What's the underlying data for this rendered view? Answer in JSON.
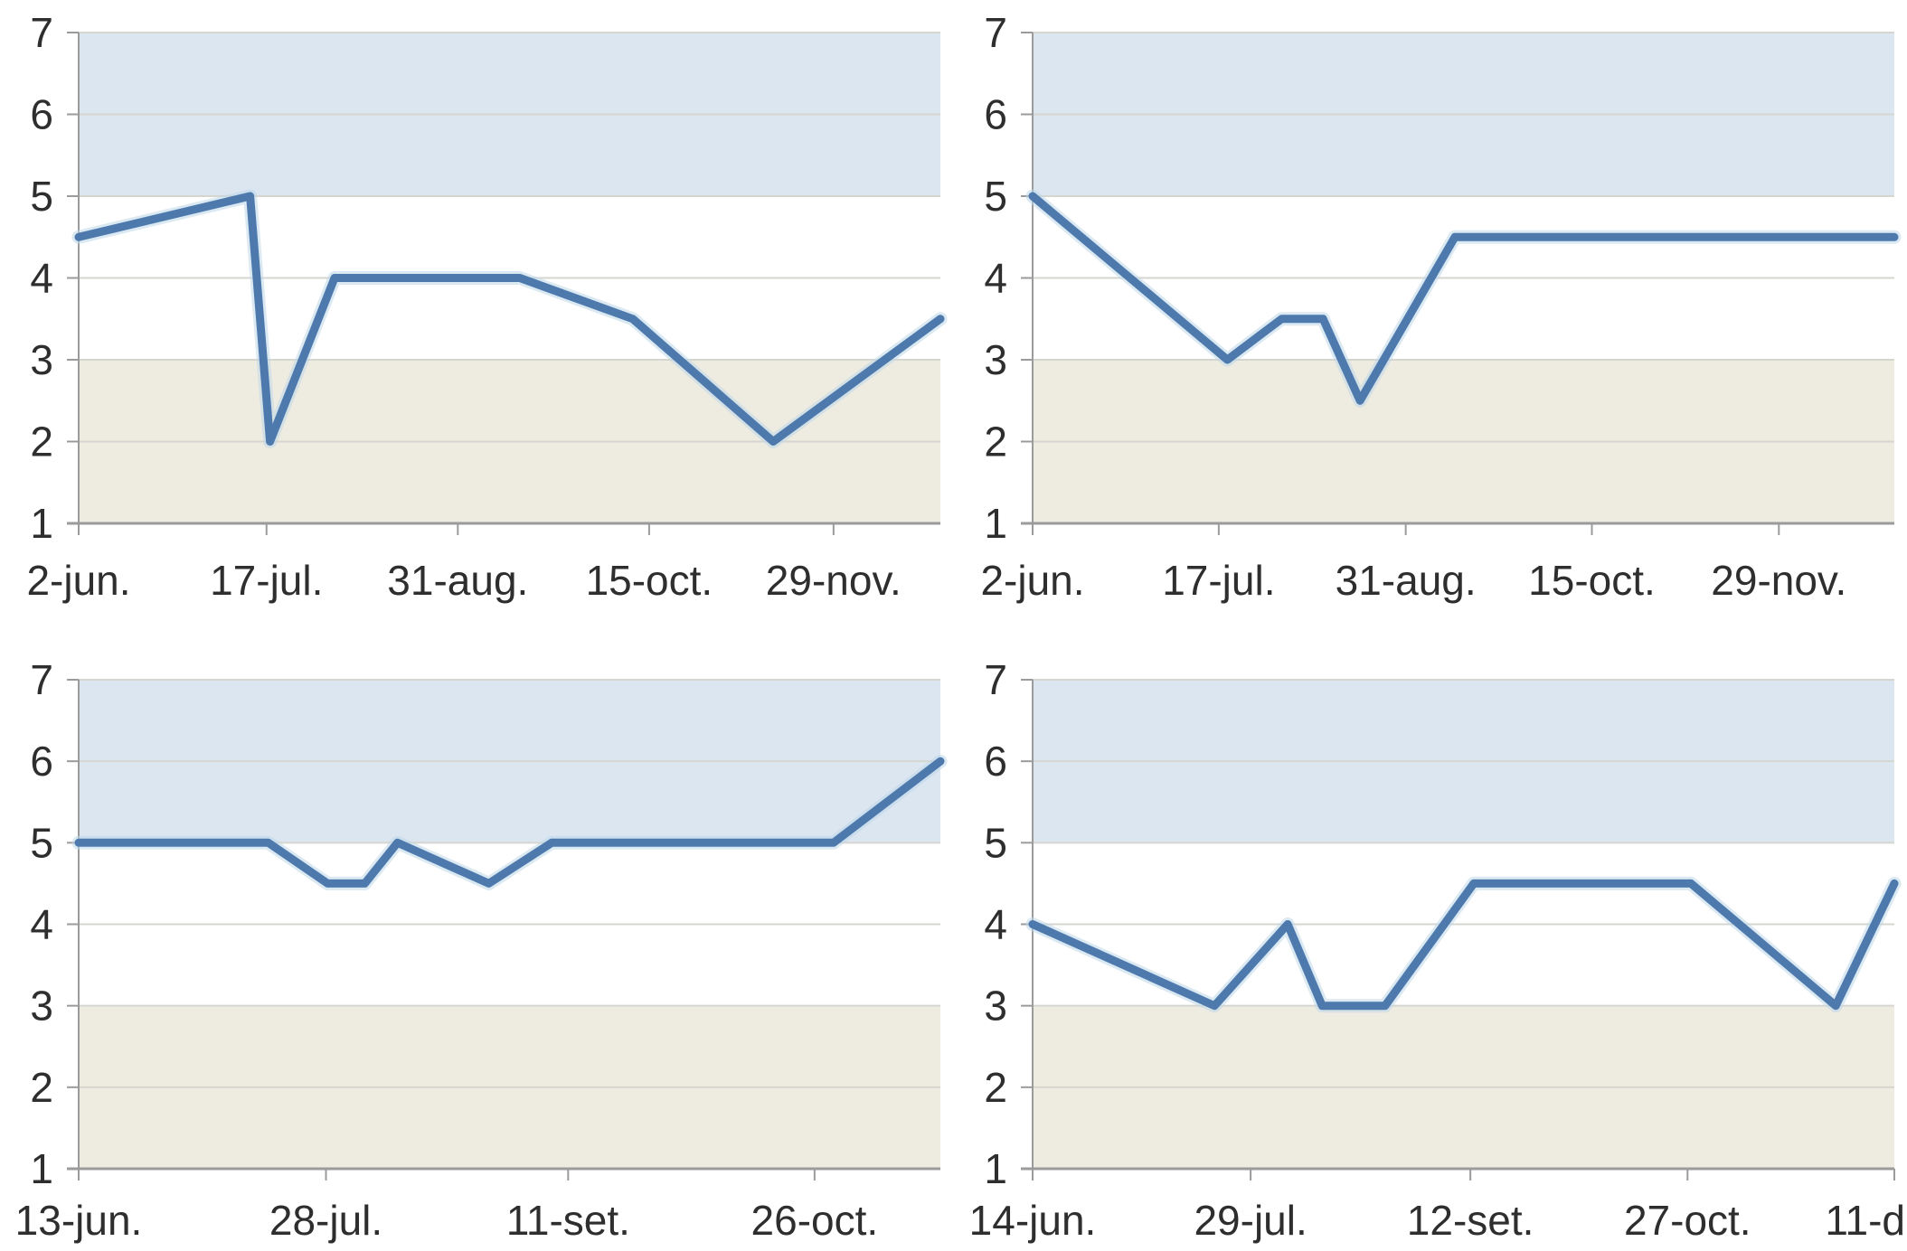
{
  "page": {
    "background": "#ffffff",
    "description": "Four Excel-style line charts in a 2x2 grid, each with y-scale 1-7, a light blue band from 5 to 7, a beige band from 1 to 3, and a single steel-blue data line over date x-axis"
  },
  "styles": {
    "band_high_color": "#dce6f1",
    "band_low_color": "#eeebe1",
    "line_color": "#4e79ad",
    "line_halo_color": "#bdd7ea",
    "gridline_color": "#d6d6d0",
    "axis_color": "#9b9b9b",
    "label_color": "#2e2e2e"
  },
  "chart_data": [
    {
      "type": "line",
      "panel": "top-left",
      "title": "",
      "ylim": [
        1,
        7
      ],
      "yticks": [
        1,
        2,
        3,
        4,
        5,
        6,
        7
      ],
      "grid": true,
      "legend": "none",
      "bands": [
        {
          "name": "high",
          "from": 5,
          "to": 7
        },
        {
          "name": "low",
          "from": 1,
          "to": 3
        }
      ],
      "xticks": [
        {
          "label": "2-jun.",
          "pos": 0.0
        },
        {
          "label": "17-jul.",
          "pos": 0.218
        },
        {
          "label": "31-aug.",
          "pos": 0.44
        },
        {
          "label": "15-oct.",
          "pos": 0.662
        },
        {
          "label": "29-nov.",
          "pos": 0.876
        }
      ],
      "points": [
        {
          "x": 0.0,
          "y": 4.5
        },
        {
          "x": 0.199,
          "y": 5
        },
        {
          "x": 0.222,
          "y": 2
        },
        {
          "x": 0.297,
          "y": 4
        },
        {
          "x": 0.512,
          "y": 4
        },
        {
          "x": 0.643,
          "y": 3.5
        },
        {
          "x": 0.806,
          "y": 2
        },
        {
          "x": 1.0,
          "y": 3.5
        }
      ]
    },
    {
      "type": "line",
      "panel": "top-right",
      "title": "",
      "ylim": [
        1,
        7
      ],
      "yticks": [
        1,
        2,
        3,
        4,
        5,
        6,
        7
      ],
      "grid": true,
      "legend": "none",
      "bands": [
        {
          "name": "high",
          "from": 5,
          "to": 7
        },
        {
          "name": "low",
          "from": 1,
          "to": 3
        }
      ],
      "xticks": [
        {
          "label": "2-jun.",
          "pos": 0.0
        },
        {
          "label": "17-jul.",
          "pos": 0.216
        },
        {
          "label": "31-aug.",
          "pos": 0.433
        },
        {
          "label": "15-oct.",
          "pos": 0.649
        },
        {
          "label": "29-nov.",
          "pos": 0.866
        }
      ],
      "points": [
        {
          "x": 0.0,
          "y": 5
        },
        {
          "x": 0.226,
          "y": 3
        },
        {
          "x": 0.289,
          "y": 3.5
        },
        {
          "x": 0.337,
          "y": 3.5
        },
        {
          "x": 0.38,
          "y": 2.5
        },
        {
          "x": 0.49,
          "y": 4.5
        },
        {
          "x": 1.0,
          "y": 4.5
        }
      ]
    },
    {
      "type": "line",
      "panel": "bottom-left",
      "title": "",
      "ylim": [
        1,
        7
      ],
      "yticks": [
        1,
        2,
        3,
        4,
        5,
        6,
        7
      ],
      "grid": true,
      "legend": "none",
      "bands": [
        {
          "name": "high",
          "from": 5,
          "to": 7
        },
        {
          "name": "low",
          "from": 1,
          "to": 3
        }
      ],
      "xticks": [
        {
          "label": "13-jun.",
          "pos": 0.0
        },
        {
          "label": "28-jul.",
          "pos": 0.287
        },
        {
          "label": "11-set.",
          "pos": 0.568
        },
        {
          "label": "26-oct.",
          "pos": 0.854
        }
      ],
      "points": [
        {
          "x": 0.0,
          "y": 5
        },
        {
          "x": 0.22,
          "y": 5
        },
        {
          "x": 0.289,
          "y": 4.5
        },
        {
          "x": 0.332,
          "y": 4.5
        },
        {
          "x": 0.37,
          "y": 5
        },
        {
          "x": 0.476,
          "y": 4.5
        },
        {
          "x": 0.549,
          "y": 5
        },
        {
          "x": 0.876,
          "y": 5
        },
        {
          "x": 1.0,
          "y": 6
        }
      ]
    },
    {
      "type": "line",
      "panel": "bottom-right",
      "title": "",
      "ylim": [
        1,
        7
      ],
      "yticks": [
        1,
        2,
        3,
        4,
        5,
        6,
        7
      ],
      "grid": true,
      "legend": "none",
      "bands": [
        {
          "name": "high",
          "from": 5,
          "to": 7
        },
        {
          "name": "low",
          "from": 1,
          "to": 3
        }
      ],
      "xticks": [
        {
          "label": "14-jun.",
          "pos": 0.0
        },
        {
          "label": "29-jul.",
          "pos": 0.253
        },
        {
          "label": "12-set.",
          "pos": 0.508
        },
        {
          "label": "27-oct.",
          "pos": 0.76
        },
        {
          "label": "11-d",
          "pos": 1.0,
          "anchor": "end"
        }
      ],
      "points": [
        {
          "x": 0.0,
          "y": 4
        },
        {
          "x": 0.211,
          "y": 3
        },
        {
          "x": 0.296,
          "y": 4
        },
        {
          "x": 0.336,
          "y": 3
        },
        {
          "x": 0.409,
          "y": 3
        },
        {
          "x": 0.512,
          "y": 4.5
        },
        {
          "x": 0.764,
          "y": 4.5
        },
        {
          "x": 0.932,
          "y": 3
        },
        {
          "x": 1.0,
          "y": 4.5
        }
      ]
    }
  ]
}
